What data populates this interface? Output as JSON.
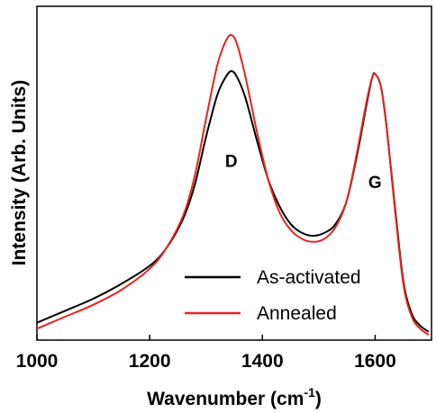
{
  "chart_data": {
    "type": "line",
    "title": "",
    "xlabel": "Wavenumber",
    "xlabel_unit_base": "cm",
    "xlabel_unit_exponent": "-1",
    "ylabel": "Intensity (Arb. Units)",
    "xlim": [
      1000,
      1700
    ],
    "ylim": [
      0,
      1.0
    ],
    "y_ticks_shown": false,
    "x_ticks": [
      1000,
      1200,
      1400,
      1600
    ],
    "x_tick_labels": [
      "1000",
      "1200",
      "1400",
      "1600"
    ],
    "grid": false,
    "legend_position": "bottom-center",
    "annotations": [
      {
        "text": "D",
        "x": 1340,
        "y": 0.56
      },
      {
        "text": "G",
        "x": 1595,
        "y": 0.49
      }
    ],
    "series": [
      {
        "name": "As-activated",
        "color": "#000000",
        "x": [
          1000,
          1050,
          1100,
          1150,
          1200,
          1230,
          1260,
          1280,
          1300,
          1320,
          1335,
          1345,
          1355,
          1370,
          1390,
          1410,
          1430,
          1450,
          1470,
          1490,
          1510,
          1530,
          1550,
          1570,
          1585,
          1595,
          1600,
          1610,
          1620,
          1635,
          1650,
          1665,
          1680,
          1695
        ],
        "values": [
          0.04,
          0.08,
          0.12,
          0.17,
          0.23,
          0.29,
          0.39,
          0.5,
          0.66,
          0.8,
          0.86,
          0.88,
          0.86,
          0.79,
          0.65,
          0.52,
          0.43,
          0.37,
          0.34,
          0.33,
          0.34,
          0.37,
          0.45,
          0.62,
          0.77,
          0.86,
          0.87,
          0.83,
          0.7,
          0.43,
          0.18,
          0.07,
          0.03,
          0.01
        ]
      },
      {
        "name": "Annealed",
        "color": "#e8231e",
        "x": [
          1000,
          1050,
          1100,
          1150,
          1200,
          1230,
          1260,
          1280,
          1300,
          1320,
          1335,
          1345,
          1355,
          1370,
          1390,
          1410,
          1430,
          1450,
          1470,
          1490,
          1510,
          1530,
          1550,
          1570,
          1585,
          1595,
          1600,
          1610,
          1620,
          1635,
          1650,
          1665,
          1680,
          1695
        ],
        "values": [
          0.02,
          0.06,
          0.1,
          0.15,
          0.22,
          0.29,
          0.4,
          0.53,
          0.72,
          0.9,
          0.98,
          1.0,
          0.97,
          0.86,
          0.68,
          0.52,
          0.41,
          0.35,
          0.32,
          0.31,
          0.32,
          0.36,
          0.45,
          0.63,
          0.78,
          0.86,
          0.87,
          0.83,
          0.7,
          0.42,
          0.17,
          0.06,
          0.02,
          0.0
        ]
      }
    ]
  }
}
